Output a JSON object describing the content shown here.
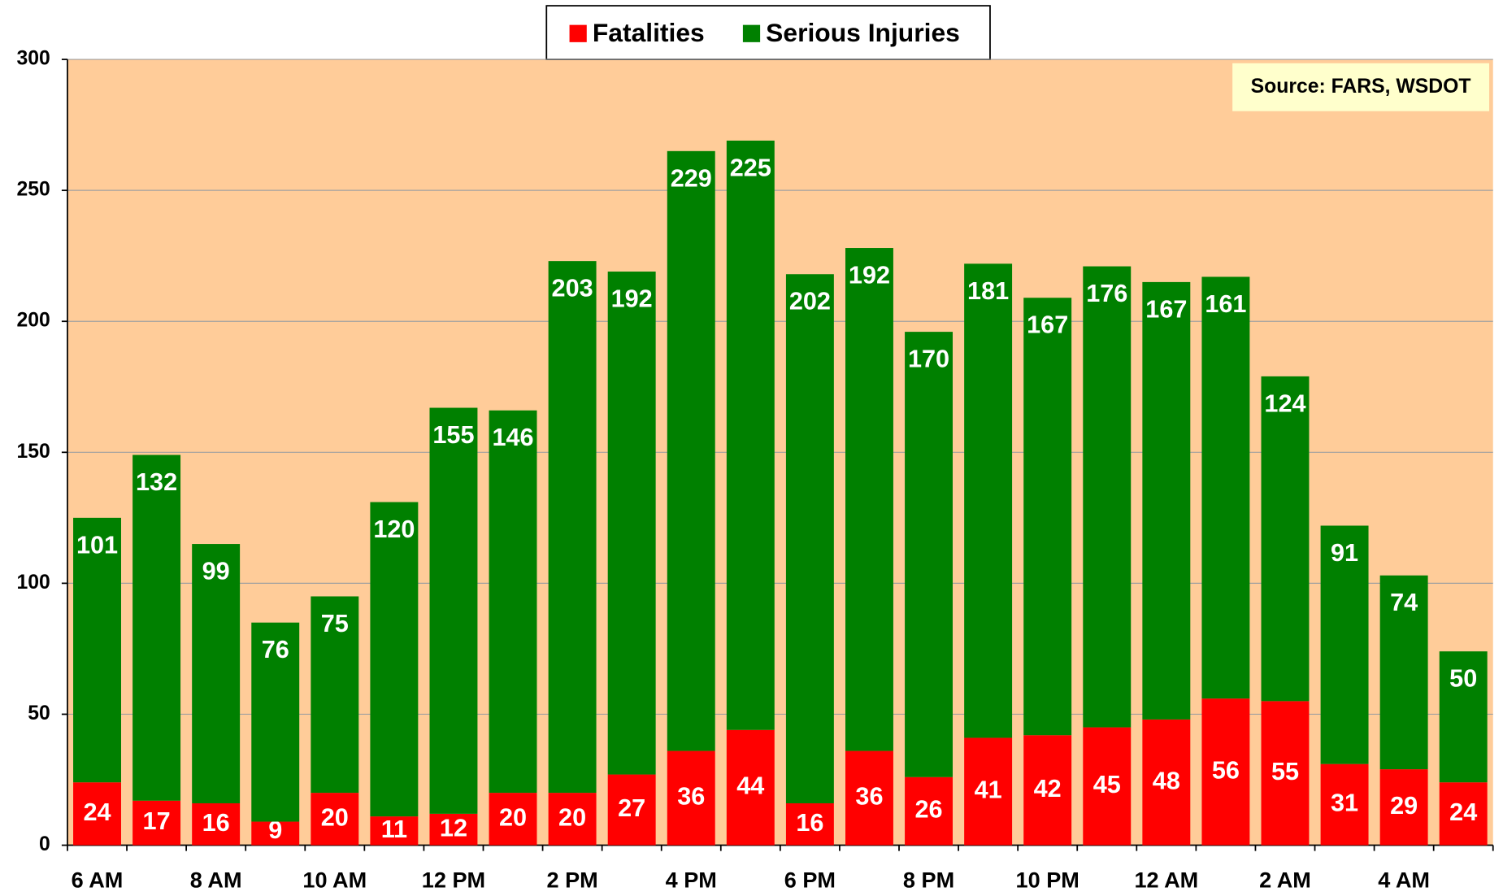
{
  "chart_data": {
    "type": "stacked_bar",
    "categories": [
      "6 AM",
      null,
      "8 AM",
      null,
      "10 AM",
      null,
      "12 PM",
      null,
      "2 PM",
      null,
      "4 PM",
      null,
      "6 PM",
      null,
      "8 PM",
      null,
      "10 PM",
      null,
      "12 AM",
      null,
      "2 AM",
      null,
      "4 AM",
      null
    ],
    "series": [
      {
        "name": "Fatalities",
        "color": "#ff0000",
        "values": [
          24,
          17,
          16,
          9,
          20,
          11,
          12,
          20,
          20,
          27,
          36,
          44,
          16,
          36,
          26,
          41,
          42,
          45,
          48,
          56,
          55,
          31,
          29,
          24
        ]
      },
      {
        "name": "Serious Injuries",
        "color": "#008000",
        "values": [
          101,
          132,
          99,
          76,
          75,
          120,
          155,
          146,
          203,
          192,
          229,
          225,
          202,
          192,
          170,
          181,
          167,
          176,
          167,
          161,
          124,
          91,
          74,
          50
        ]
      }
    ],
    "annotation": "Source: FARS, WSDOT",
    "ylim": [
      0,
      300
    ],
    "yticks": [
      0,
      50,
      100,
      150,
      200,
      250,
      300
    ],
    "grid": true,
    "legend": "top"
  }
}
